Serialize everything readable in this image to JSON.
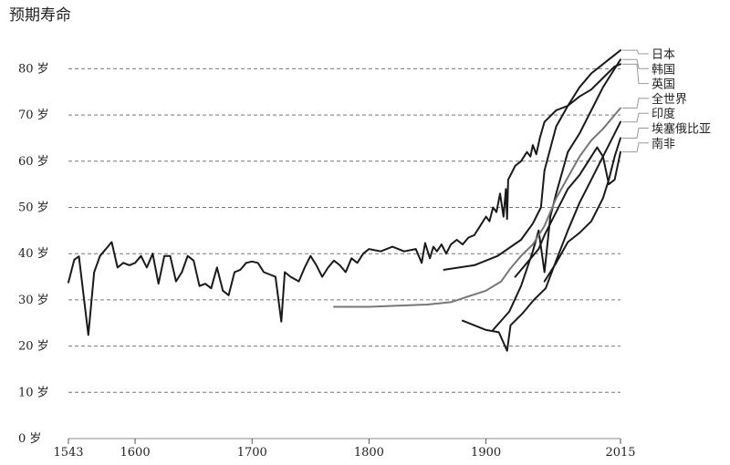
{
  "chart_data": {
    "type": "line",
    "title": "预期寿命",
    "ylim": [
      0,
      85
    ],
    "xlim": [
      1543,
      2015
    ],
    "y_ticks": [
      0,
      10,
      20,
      30,
      40,
      50,
      60,
      70,
      80
    ],
    "y_tick_labels": [
      "0 岁",
      "10 岁",
      "20 岁",
      "30 岁",
      "40 岁",
      "50 岁",
      "60 岁",
      "70 岁",
      "80 岁"
    ],
    "x_ticks": [
      1543,
      1600,
      1700,
      1800,
      1900,
      2015
    ],
    "x_tick_labels": [
      "1543",
      "1600",
      "1700",
      "1800",
      "1900",
      "2015"
    ],
    "grid": "horizontal dashed",
    "legend": "right, with leader lines",
    "series": [
      {
        "name": "日本",
        "color": "#1a1a1a",
        "width": 2,
        "x": [
          1864,
          1890,
          1910,
          1930,
          1940,
          1947,
          1950,
          1960,
          1970,
          1980,
          1990,
          2000,
          2010,
          2015
        ],
        "y": [
          36.5,
          37.5,
          39.5,
          43,
          46.5,
          50,
          58,
          67.5,
          72,
          76,
          79,
          81,
          83,
          84
        ]
      },
      {
        "name": "韩国",
        "color": "#1a1a1a",
        "width": 2,
        "x": [
          1906,
          1920,
          1930,
          1940,
          1945,
          1950,
          1955,
          1960,
          1970,
          1980,
          1990,
          2000,
          2010,
          2015
        ],
        "y": [
          23.5,
          27.5,
          33,
          40.5,
          45,
          36,
          48,
          53,
          62,
          66,
          71,
          76,
          80,
          82
        ]
      },
      {
        "name": "英国",
        "color": "#1a1a1a",
        "width": 2,
        "x": [
          1543,
          1548,
          1552,
          1560,
          1565,
          1570,
          1575,
          1580,
          1585,
          1590,
          1595,
          1600,
          1605,
          1610,
          1615,
          1620,
          1625,
          1630,
          1635,
          1640,
          1645,
          1650,
          1655,
          1660,
          1665,
          1670,
          1675,
          1680,
          1685,
          1690,
          1695,
          1700,
          1705,
          1710,
          1715,
          1720,
          1725,
          1728,
          1733,
          1740,
          1745,
          1750,
          1755,
          1760,
          1765,
          1770,
          1775,
          1780,
          1785,
          1790,
          1795,
          1800,
          1810,
          1820,
          1830,
          1840,
          1845,
          1848,
          1852,
          1855,
          1858,
          1862,
          1866,
          1870,
          1875,
          1880,
          1885,
          1890,
          1895,
          1900,
          1903,
          1906,
          1909,
          1912,
          1915,
          1917,
          1918,
          1919,
          1921,
          1925,
          1930,
          1935,
          1938,
          1940,
          1943,
          1946,
          1950,
          1960,
          1970,
          1980,
          1990,
          2000,
          2010,
          2015
        ],
        "y": [
          33.8,
          38.7,
          39.4,
          22.4,
          36,
          39.5,
          41,
          42.5,
          37,
          38,
          37.5,
          38,
          39.5,
          37,
          40,
          33.5,
          39.5,
          39.5,
          34,
          36,
          39.5,
          38.5,
          33,
          33.5,
          32.5,
          37,
          32,
          31,
          36,
          36.5,
          38,
          38.3,
          38,
          36,
          35.5,
          35,
          25.3,
          36,
          35,
          34,
          37,
          39.5,
          37.5,
          35,
          37,
          38.5,
          37.5,
          36,
          39,
          38,
          40,
          41,
          40.5,
          41.5,
          40.5,
          41,
          38,
          42.3,
          39,
          41.5,
          40.5,
          42,
          40,
          42,
          43,
          42,
          43.5,
          44,
          46,
          48,
          47,
          50,
          49,
          53,
          48,
          54,
          47.5,
          56,
          57,
          59,
          60,
          62,
          61,
          63.5,
          61.5,
          65,
          68.5,
          71,
          72,
          74,
          75.5,
          78,
          80.5,
          81
        ]
      },
      {
        "name": "全世界",
        "color": "#777777",
        "width": 2,
        "x": [
          1770,
          1800,
          1850,
          1870,
          1900,
          1913,
          1920,
          1930,
          1940,
          1950,
          1960,
          1970,
          1980,
          1990,
          2000,
          2010,
          2015
        ],
        "y": [
          28.5,
          28.5,
          29,
          29.5,
          32,
          34,
          36.5,
          39.5,
          42,
          46,
          52,
          56.5,
          61,
          64.5,
          67,
          70,
          71.5
        ]
      },
      {
        "name": "印度",
        "color": "#1a1a1a",
        "width": 2,
        "x": [
          1880,
          1890,
          1900,
          1911,
          1918,
          1921,
          1931,
          1941,
          1951,
          1960,
          1970,
          1980,
          1990,
          2000,
          2010,
          2015
        ],
        "y": [
          25.5,
          24.5,
          23.5,
          23,
          19,
          24.5,
          27,
          30,
          32.5,
          38.5,
          45,
          51,
          56,
          61,
          66,
          68.5
        ]
      },
      {
        "name": "埃塞俄比亚",
        "color": "#1a1a1a",
        "width": 2,
        "x": [
          1950,
          1960,
          1970,
          1980,
          1990,
          2000,
          2005,
          2010,
          2015
        ],
        "y": [
          34,
          38,
          42.5,
          44.5,
          47,
          52,
          56,
          61,
          65
        ]
      },
      {
        "name": "南非",
        "color": "#1a1a1a",
        "width": 2,
        "x": [
          1925,
          1935,
          1945,
          1950,
          1960,
          1970,
          1980,
          1990,
          1995,
          2000,
          2005,
          2010,
          2015
        ],
        "y": [
          35,
          38,
          41,
          44,
          49,
          54,
          57,
          61,
          63,
          61,
          55,
          56,
          62
        ]
      }
    ]
  }
}
